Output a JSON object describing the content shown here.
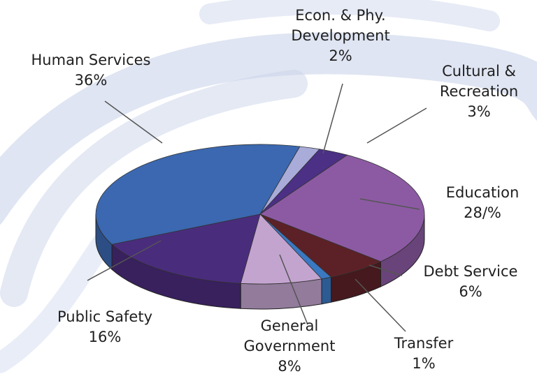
{
  "chart_data": {
    "type": "pie3d",
    "categories": [
      "Econ. & Phy. Development",
      "Cultural & Recreation",
      "Education",
      "Debt Service",
      "Transfer",
      "General Government",
      "Public Safety",
      "Human Services"
    ],
    "values": [
      2,
      3,
      28,
      6,
      1,
      8,
      16,
      36
    ],
    "value_labels": [
      "2%",
      "3%",
      "28/%",
      "6%",
      "1%",
      "8%",
      "16%",
      "36%"
    ],
    "colors": [
      "#a9acd9",
      "#4b3085",
      "#8c5aa3",
      "#5c2126",
      "#3a78c2",
      "#c3a4cf",
      "#4a2c7c",
      "#3b68b0"
    ]
  }
}
